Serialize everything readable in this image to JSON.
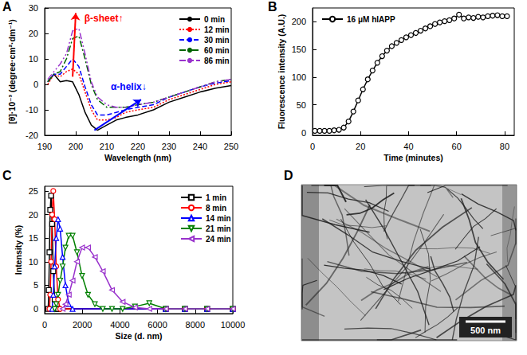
{
  "chart_data": [
    {
      "panel": "A",
      "type": "line",
      "x_label": "Wavelength (nm)",
      "y_label": "[θ]·10⁻³ (degree·cm²·dm⁻¹)",
      "xlim": [
        190,
        250
      ],
      "xticks": [
        190,
        200,
        210,
        220,
        230,
        240,
        250
      ],
      "ylim": [
        -20,
        30
      ],
      "yticks": [
        -20,
        -10,
        0,
        10,
        20,
        30
      ],
      "grid": false,
      "legend": "upper right",
      "x": [
        191,
        193,
        195,
        197,
        199,
        201,
        203,
        205,
        207,
        210,
        213,
        216,
        220,
        225,
        230,
        235,
        240,
        245,
        250
      ],
      "series": [
        {
          "name": "0 min",
          "color": "#000000",
          "line_style": "solid",
          "values": [
            1,
            4,
            1,
            1.5,
            1,
            -4,
            -11,
            -16,
            -18,
            -16,
            -14,
            -13,
            -12,
            -10,
            -7,
            -5,
            -3,
            -1.5,
            -0.5
          ]
        },
        {
          "name": "12 min",
          "color": "#ff0000",
          "line_style": "dotted",
          "values": [
            0,
            4,
            3,
            5,
            6,
            4,
            -3,
            -10,
            -14,
            -14,
            -13,
            -11,
            -10,
            -9,
            -6,
            -4,
            -2,
            0,
            1
          ]
        },
        {
          "name": "30 min",
          "color": "#0000ff",
          "line_style": "dashed",
          "values": [
            1,
            4,
            4,
            7,
            10,
            7,
            -1,
            -8,
            -12,
            -12,
            -11,
            -10,
            -9,
            -8,
            -5,
            -3,
            -1,
            0.5,
            1.5
          ]
        },
        {
          "name": "60 min",
          "color": "#006400",
          "line_style": "dashdot",
          "values": [
            1,
            4,
            5,
            10,
            18,
            19,
            10,
            0,
            -6,
            -9,
            -9,
            -9,
            -8,
            -7,
            -5,
            -3,
            -1,
            1,
            2
          ]
        },
        {
          "name": "86 min",
          "color": "#9932cc",
          "line_style": "dashdotdot",
          "values": [
            2,
            5,
            8,
            12,
            21,
            22,
            12,
            1,
            -5,
            -8,
            -9,
            -9,
            -8,
            -7,
            -5,
            -3,
            -1,
            1,
            2
          ]
        }
      ],
      "annotations": [
        {
          "text": "β-sheet↑",
          "x": 209,
          "y": 26,
          "color": "#ff0000",
          "arrow": [
            199,
            3,
            200,
            28
          ]
        },
        {
          "text": "α-helix↓",
          "x": 217,
          "y": -1,
          "color": "#0000ff",
          "arrow": [
            206,
            -18,
            221,
            -6
          ]
        }
      ]
    },
    {
      "panel": "B",
      "type": "line",
      "x_label": "Time (minutes)",
      "y_label": "Fluorescence intensity (A.U.)",
      "xlim": [
        0,
        84
      ],
      "xticks": [
        0,
        20,
        40,
        60,
        80
      ],
      "ylim": [
        -5,
        225
      ],
      "yticks": [
        0,
        50,
        100,
        150,
        200
      ],
      "grid": false,
      "legend": "upper left",
      "x": [
        1,
        3,
        5,
        7,
        9,
        11,
        13,
        15,
        17,
        19,
        21,
        23,
        25,
        27,
        29,
        31,
        33,
        35,
        37,
        39,
        41,
        43,
        45,
        47,
        49,
        51,
        53,
        55,
        57,
        59,
        61,
        63,
        65,
        67,
        69,
        71,
        73,
        75,
        77,
        79,
        81
      ],
      "series": [
        {
          "name": "16 μM hIAPP",
          "color": "#000000",
          "marker": "circle",
          "line_style": "solid",
          "values": [
            3,
            3,
            3,
            3,
            4,
            5,
            9,
            20,
            38,
            58,
            78,
            96,
            112,
            126,
            138,
            148,
            156,
            162,
            167,
            172,
            176,
            180,
            184,
            188,
            192,
            196,
            199,
            201,
            203,
            206,
            213,
            206,
            208,
            207,
            209,
            208,
            210,
            211,
            212,
            210,
            210
          ]
        }
      ]
    },
    {
      "panel": "C",
      "type": "line",
      "x_label": "Size (d. nm)",
      "y_label": "Intensity (%)",
      "xlim": [
        0,
        10000
      ],
      "xticks": [
        0,
        2000,
        4000,
        6000,
        8000,
        10000
      ],
      "ylim": [
        -1,
        26
      ],
      "yticks": [
        0,
        5,
        10,
        15,
        20,
        25
      ],
      "grid": false,
      "legend": "upper right",
      "series": [
        {
          "name": "1 min",
          "color": "#000000",
          "marker": "square",
          "line_style": "solid",
          "x": [
            190.1,
            220.2,
            255,
            295.3,
            342,
            396.1,
            458.7,
            531.2,
            615.1,
            712.4,
            6439,
            7456,
            8635,
            10000
          ],
          "values": [
            0,
            4,
            12,
            21,
            24,
            18,
            8,
            2,
            0,
            0,
            0,
            0,
            0,
            0
          ]
        },
        {
          "name": "8 min",
          "color": "#ff0000",
          "marker": "circle",
          "line_style": "solid",
          "x": [
            255,
            295.3,
            342,
            396.1,
            458.7,
            531.2,
            615.1,
            712.4,
            825,
            6439,
            7456,
            8635,
            10000
          ],
          "values": [
            0,
            3,
            10,
            20,
            25,
            19,
            9,
            2,
            0,
            0,
            0,
            0,
            0
          ]
        },
        {
          "name": "14 min",
          "color": "#0000ff",
          "marker": "triangle",
          "line_style": "solid",
          "x": [
            396.1,
            458.7,
            531.2,
            615.1,
            712.4,
            825,
            955.4,
            1106,
            1281,
            1484,
            6439,
            7456,
            8635,
            10000
          ],
          "values": [
            0,
            3,
            9,
            15,
            19,
            17,
            11,
            5,
            1,
            0,
            0,
            0,
            0,
            0
          ]
        },
        {
          "name": "21 min",
          "color": "#008000",
          "marker": "triangle_down",
          "line_style": "solid",
          "x": [
            531.2,
            615.1,
            712.4,
            825,
            955.4,
            1106,
            1281,
            1484,
            1718,
            1990,
            2305,
            2669,
            3091,
            3580,
            4145,
            4801,
            5560,
            6439,
            7456,
            8635,
            10000
          ],
          "values": [
            0,
            1,
            3,
            6,
            9,
            13,
            15.5,
            15.5,
            12,
            7,
            3,
            1,
            0,
            0,
            0,
            0.5,
            1.2,
            0,
            0,
            0,
            0
          ]
        },
        {
          "name": "24 min",
          "color": "#9932cc",
          "marker": "triangle_left",
          "line_style": "solid",
          "x": [
            955.4,
            1106,
            1281,
            1484,
            1718,
            1990,
            2305,
            2669,
            3091,
            3580,
            4145,
            4801,
            5560,
            6439,
            7456,
            8635,
            10000
          ],
          "values": [
            0,
            1,
            3,
            6,
            10,
            13,
            13,
            11,
            8,
            4,
            1.5,
            0.3,
            0,
            0,
            0,
            0,
            0
          ]
        }
      ]
    }
  ],
  "image": {
    "panel": "D",
    "scale_bar": "500 nm"
  }
}
